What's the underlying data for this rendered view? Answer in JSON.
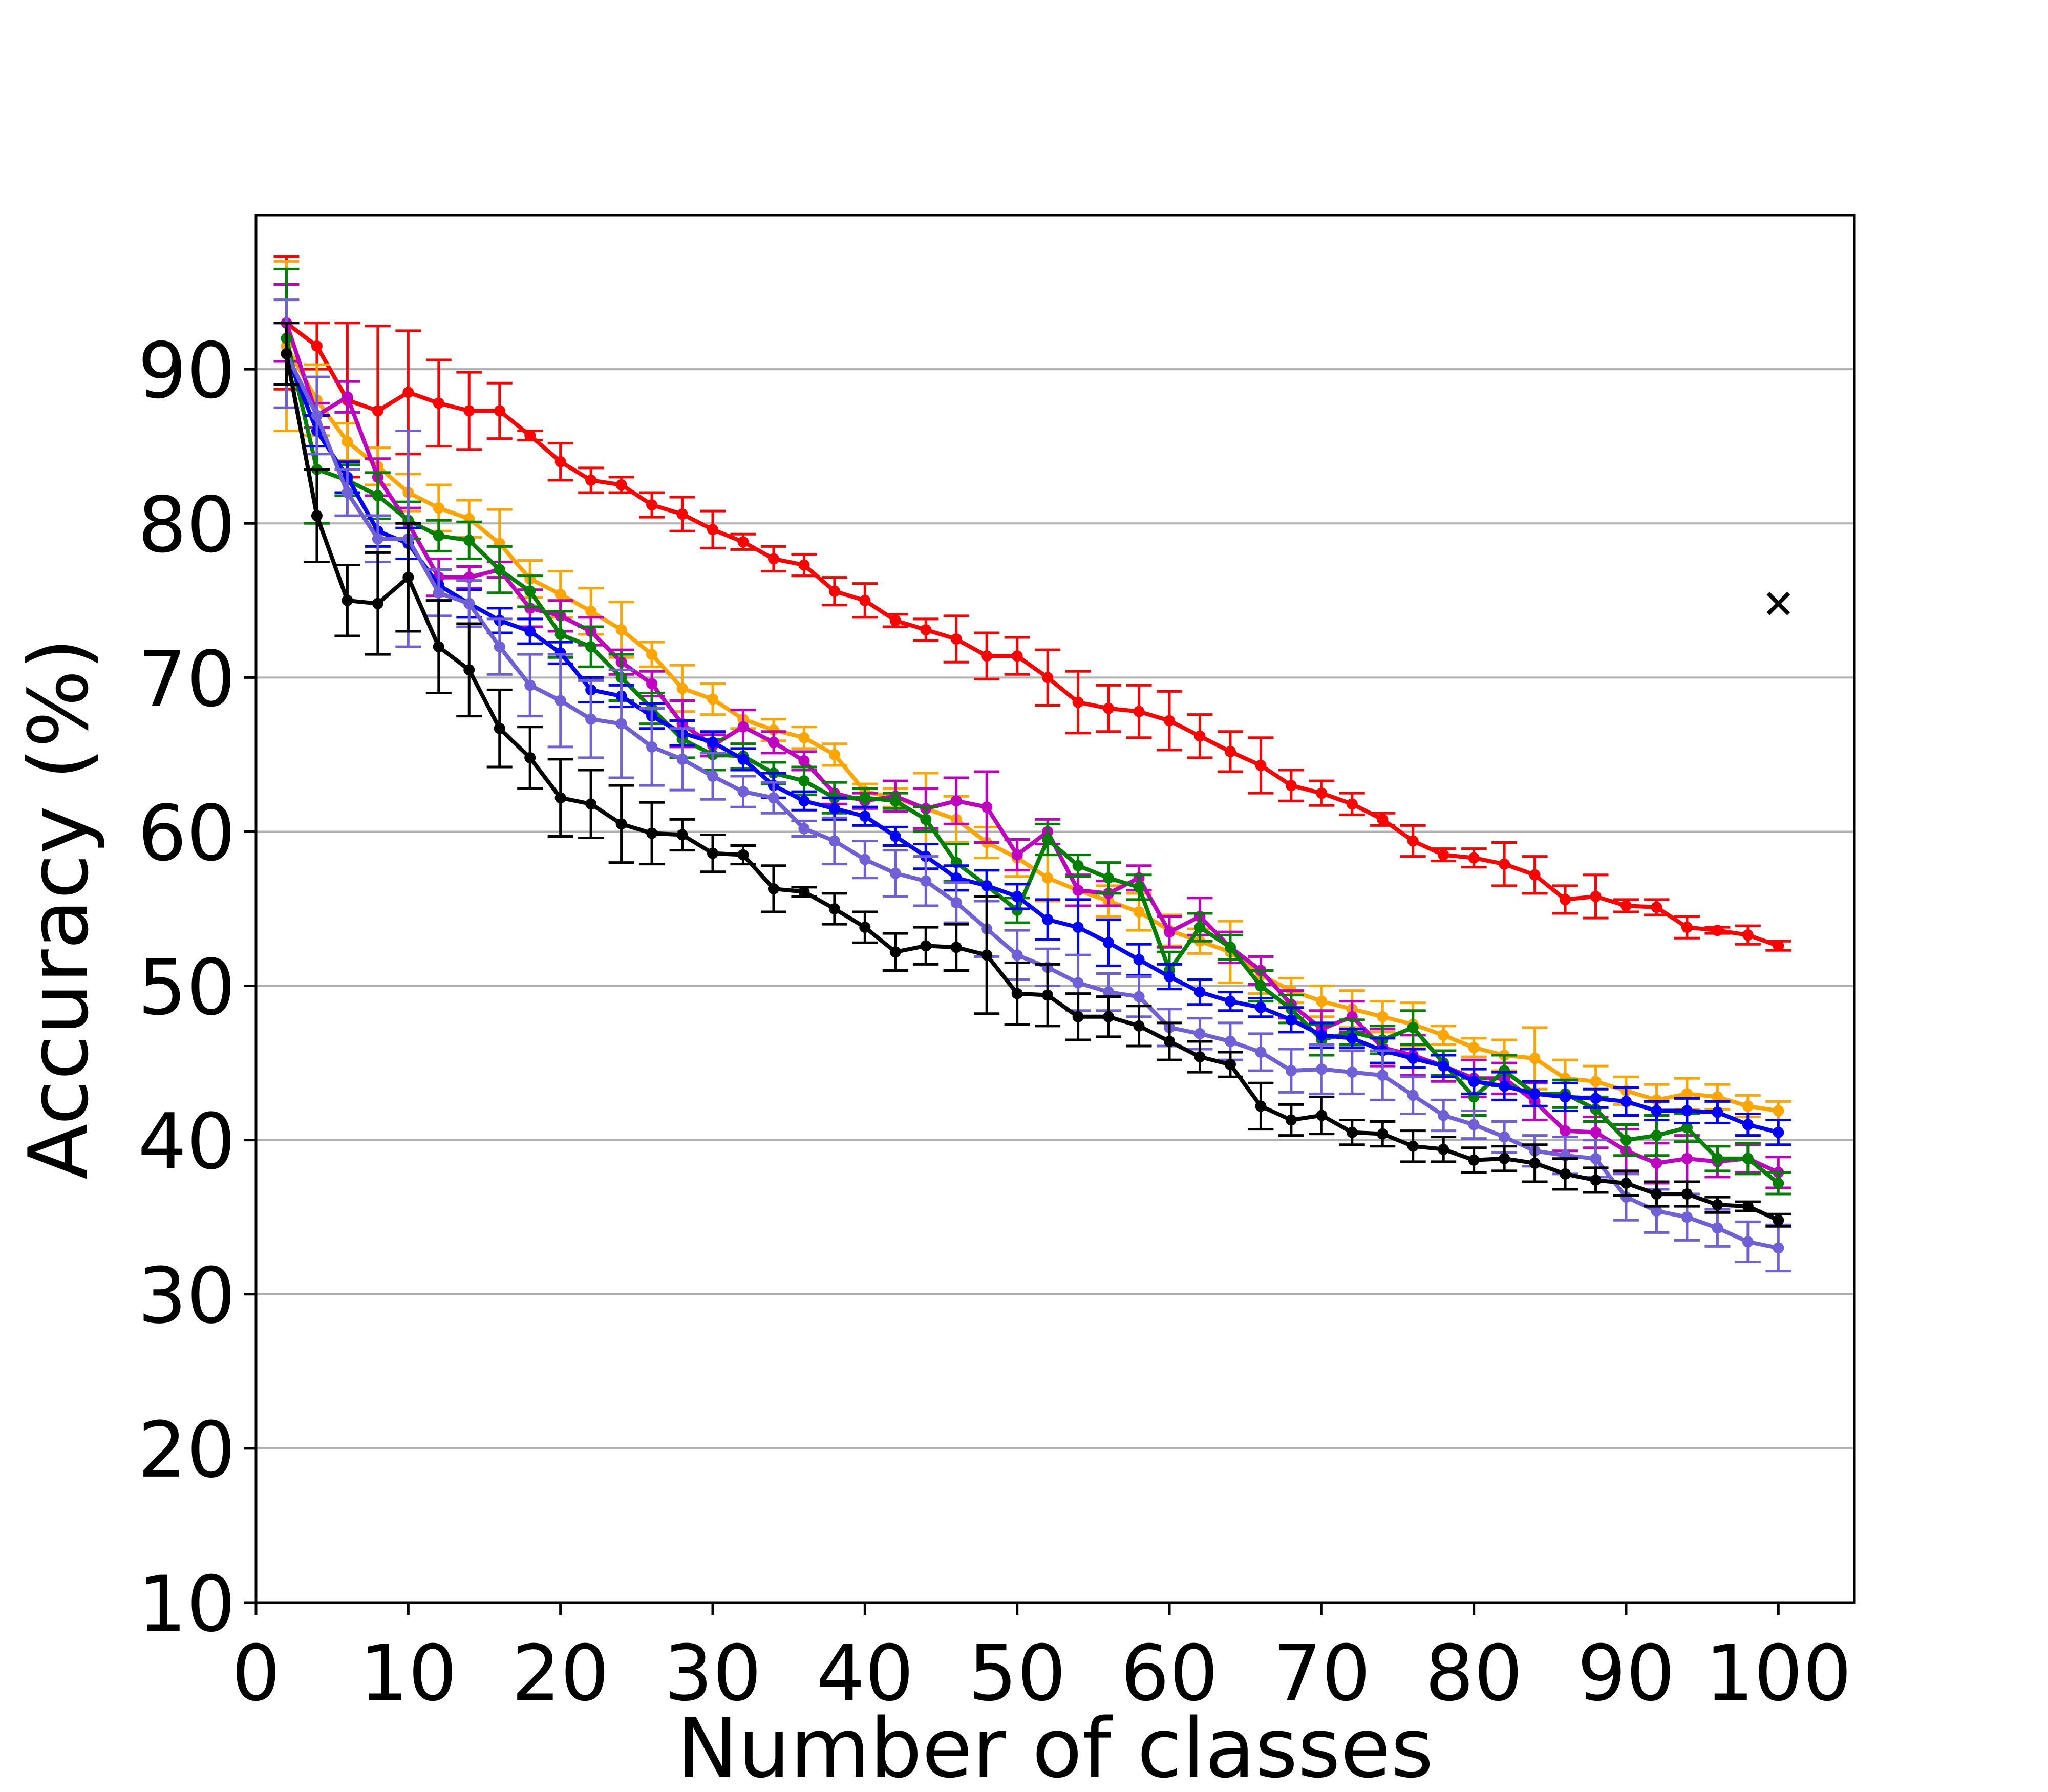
{
  "chart_data": {
    "type": "line",
    "title": "",
    "xlabel": "Number of classes",
    "ylabel": "Accuracy (%)",
    "xlim": [
      0,
      105
    ],
    "ylim": [
      10,
      100
    ],
    "xticks": [
      0,
      10,
      20,
      30,
      40,
      50,
      60,
      70,
      80,
      90,
      100
    ],
    "yticks": [
      10,
      20,
      30,
      40,
      50,
      60,
      70,
      80,
      90
    ],
    "grid": "horizontal",
    "legend": "none",
    "x": [
      2,
      4,
      6,
      8,
      10,
      12,
      14,
      16,
      18,
      20,
      22,
      24,
      26,
      28,
      30,
      32,
      34,
      36,
      38,
      40,
      42,
      44,
      46,
      48,
      50,
      52,
      54,
      56,
      58,
      60,
      62,
      64,
      66,
      68,
      70,
      72,
      74,
      76,
      78,
      80,
      82,
      84,
      86,
      88,
      90,
      92,
      94,
      96,
      98,
      100
    ],
    "series": [
      {
        "color": "#ff0000",
        "values": [
          93.0,
          91.5,
          88.0,
          87.3,
          88.5,
          87.8,
          87.3,
          87.3,
          85.7,
          84.0,
          82.8,
          82.5,
          81.2,
          80.6,
          79.6,
          78.8,
          77.7,
          77.3,
          75.6,
          75.0,
          73.7,
          73.1,
          72.5,
          71.4,
          71.4,
          70.0,
          68.4,
          68.0,
          67.8,
          67.2,
          66.2,
          65.2,
          64.3,
          63.0,
          62.5,
          61.8,
          60.8,
          59.4,
          58.5,
          58.3,
          57.9,
          57.2,
          55.6,
          55.8,
          55.2,
          55.1,
          53.8,
          53.6,
          53.3,
          52.6
        ],
        "errors": [
          4.3,
          1.5,
          5.0,
          5.5,
          4.0,
          2.8,
          2.5,
          1.8,
          0.3,
          1.2,
          0.8,
          0.5,
          0.8,
          1.1,
          1.2,
          0.5,
          0.8,
          0.7,
          0.9,
          1.1,
          0.4,
          0.7,
          1.5,
          1.5,
          1.2,
          1.8,
          2.0,
          1.5,
          1.7,
          1.9,
          1.4,
          1.3,
          1.8,
          1.0,
          0.8,
          0.7,
          0.4,
          1.0,
          0.4,
          0.6,
          1.4,
          1.2,
          0.9,
          1.4,
          0.4,
          0.5,
          0.7,
          0.2,
          0.6,
          0.3
        ]
      },
      {
        "color": "#ffa500",
        "values": [
          91.5,
          88.0,
          85.3,
          83.7,
          82.0,
          81.0,
          80.3,
          78.7,
          76.4,
          75.4,
          74.3,
          73.1,
          71.5,
          69.3,
          68.6,
          67.3,
          66.6,
          66.1,
          65.0,
          62.6,
          62.2,
          61.5,
          60.8,
          59.3,
          58.3,
          57.0,
          56.2,
          55.5,
          54.8,
          53.6,
          52.9,
          52.2,
          50.7,
          49.7,
          49.0,
          48.5,
          48.0,
          47.5,
          46.8,
          46.0,
          45.5,
          45.3,
          44.0,
          43.8,
          43.2,
          42.6,
          43.0,
          42.8,
          42.2,
          41.9
        ],
        "errors": [
          5.5,
          2.3,
          1.2,
          1.2,
          1.2,
          1.5,
          1.2,
          2.2,
          1.2,
          1.5,
          1.5,
          1.8,
          0.8,
          1.5,
          1.0,
          0.6,
          0.7,
          0.7,
          0.7,
          0.5,
          0.6,
          2.3,
          1.5,
          1.0,
          1.2,
          1.5,
          1.0,
          1.0,
          1.2,
          1.0,
          0.8,
          2.0,
          1.2,
          0.8,
          1.0,
          1.2,
          1.0,
          1.4,
          0.6,
          0.6,
          1.0,
          2.0,
          1.2,
          1.0,
          0.9,
          1.0,
          1.0,
          0.8,
          0.7,
          0.6
        ]
      },
      {
        "color": "#c000c0",
        "values": [
          93.0,
          87.0,
          88.2,
          83.0,
          80.0,
          76.5,
          76.5,
          77.0,
          74.5,
          74.0,
          73.0,
          71.0,
          69.6,
          67.0,
          65.6,
          66.8,
          65.8,
          64.6,
          62.5,
          62.0,
          62.3,
          61.5,
          62.0,
          61.6,
          58.5,
          60.0,
          56.2,
          56.0,
          57.0,
          53.5,
          54.5,
          52.5,
          51.0,
          48.8,
          47.2,
          48.0,
          46.0,
          45.5,
          44.8,
          44.0,
          44.0,
          42.5,
          40.6,
          40.5,
          39.3,
          38.5,
          38.8,
          38.6,
          38.8,
          37.9
        ],
        "errors": [
          2.5,
          0.8,
          1.0,
          1.2,
          1.0,
          1.2,
          0.7,
          0.5,
          1.2,
          1.0,
          0.9,
          0.8,
          0.8,
          1.5,
          0.7,
          1.1,
          0.7,
          0.6,
          0.7,
          0.5,
          1.0,
          1.3,
          1.5,
          2.3,
          1.0,
          0.8,
          1.0,
          0.8,
          0.8,
          1.0,
          1.2,
          1.0,
          0.9,
          0.9,
          1.2,
          1.0,
          1.2,
          1.3,
          1.0,
          1.2,
          1.0,
          1.2,
          1.3,
          1.0,
          1.4,
          1.3,
          1.5,
          1.0,
          0.9,
          1.0
        ]
      },
      {
        "color": "#008000",
        "values": [
          92.0,
          83.5,
          82.8,
          81.8,
          80.2,
          79.2,
          78.9,
          77.0,
          75.6,
          72.8,
          72.0,
          70.0,
          68.0,
          66.0,
          65.0,
          64.9,
          63.8,
          63.3,
          62.2,
          62.2,
          62.0,
          60.8,
          58.0,
          56.5,
          54.9,
          59.5,
          57.8,
          57.0,
          56.4,
          51.0,
          53.8,
          52.5,
          50.0,
          48.5,
          46.5,
          47.0,
          46.5,
          47.3,
          45.0,
          42.8,
          44.5,
          43.0,
          43.0,
          42.0,
          40.0,
          40.3,
          40.8,
          38.8,
          38.8,
          37.2
        ],
        "errors": [
          4.5,
          3.5,
          1.0,
          1.5,
          1.2,
          1.0,
          1.2,
          1.5,
          1.0,
          1.5,
          1.3,
          1.5,
          1.0,
          1.2,
          1.0,
          0.8,
          0.7,
          0.9,
          1.0,
          0.6,
          0.5,
          0.8,
          1.2,
          1.0,
          0.8,
          1.0,
          0.7,
          1.0,
          0.8,
          1.2,
          0.9,
          0.8,
          1.0,
          0.9,
          1.0,
          0.8,
          0.9,
          1.1,
          0.8,
          1.2,
          1.0,
          0.8,
          0.9,
          0.8,
          1.0,
          1.3,
          0.9,
          0.8,
          1.0,
          0.7
        ]
      },
      {
        "color": "#0000ff",
        "values": [
          91.0,
          86.0,
          83.0,
          79.5,
          78.7,
          76.0,
          74.8,
          73.7,
          73.0,
          71.6,
          69.2,
          68.8,
          67.5,
          66.4,
          65.8,
          64.7,
          63.0,
          62.0,
          61.5,
          61.0,
          59.7,
          58.4,
          57.0,
          56.5,
          55.8,
          54.3,
          53.8,
          52.8,
          51.7,
          50.6,
          49.6,
          49.0,
          48.6,
          47.8,
          46.8,
          46.6,
          45.8,
          45.3,
          44.8,
          43.8,
          43.5,
          43.0,
          42.8,
          42.7,
          42.5,
          41.9,
          41.9,
          41.8,
          41.0,
          40.5
        ],
        "errors": [
          2.0,
          1.0,
          1.0,
          1.0,
          1.0,
          1.0,
          0.9,
          0.8,
          0.8,
          0.7,
          0.8,
          0.7,
          0.8,
          0.8,
          0.7,
          0.7,
          0.8,
          0.6,
          0.7,
          0.6,
          0.6,
          0.8,
          0.8,
          1.0,
          0.8,
          1.3,
          1.8,
          1.5,
          1.0,
          0.8,
          0.8,
          0.6,
          0.6,
          0.8,
          0.8,
          0.6,
          0.8,
          0.6,
          0.7,
          0.8,
          0.9,
          0.8,
          0.9,
          0.6,
          0.9,
          0.6,
          0.8,
          0.7,
          0.7,
          0.8
        ]
      },
      {
        "color": "#7060d8",
        "values": [
          91.0,
          87.0,
          82.0,
          79.0,
          79.0,
          75.5,
          74.8,
          72.0,
          69.5,
          68.5,
          67.3,
          67.0,
          65.5,
          64.7,
          63.6,
          62.6,
          62.2,
          60.2,
          59.4,
          58.2,
          57.3,
          56.8,
          55.4,
          53.7,
          52.0,
          51.2,
          50.2,
          49.6,
          49.3,
          47.3,
          46.9,
          46.4,
          45.7,
          44.5,
          44.6,
          44.4,
          44.2,
          42.9,
          41.6,
          41.0,
          40.2,
          39.3,
          39.0,
          38.8,
          36.3,
          35.4,
          35.0,
          34.3,
          33.4,
          33.0
        ],
        "errors": [
          3.5,
          2.5,
          1.5,
          1.5,
          7.0,
          1.5,
          1.5,
          1.8,
          2.0,
          3.0,
          2.5,
          3.5,
          2.5,
          2.0,
          1.5,
          1.0,
          1.0,
          0.5,
          1.5,
          1.2,
          1.5,
          1.6,
          1.3,
          1.8,
          1.6,
          1.2,
          1.8,
          1.2,
          1.3,
          1.2,
          1.0,
          1.2,
          1.2,
          1.4,
          1.6,
          1.4,
          1.6,
          1.2,
          1.0,
          0.9,
          1.0,
          1.0,
          1.2,
          1.2,
          1.5,
          1.4,
          1.5,
          1.2,
          1.3,
          1.5
        ]
      },
      {
        "color": "#000000",
        "values": [
          91.0,
          80.5,
          75.0,
          74.8,
          76.5,
          72.0,
          70.5,
          66.7,
          64.8,
          62.2,
          61.8,
          60.5,
          59.9,
          59.8,
          58.6,
          58.5,
          56.3,
          56.1,
          55.0,
          53.8,
          52.2,
          52.6,
          52.5,
          52.0,
          49.5,
          49.4,
          48.0,
          48.0,
          47.4,
          46.4,
          45.4,
          44.9,
          42.2,
          41.3,
          41.6,
          40.5,
          40.4,
          39.6,
          39.4,
          38.7,
          38.8,
          38.5,
          37.8,
          37.4,
          37.2,
          36.5,
          36.5,
          35.8,
          35.7,
          34.8
        ],
        "errors": [
          2.0,
          3.0,
          2.3,
          3.3,
          3.5,
          3.0,
          3.0,
          2.5,
          2.0,
          2.5,
          2.2,
          2.5,
          2.0,
          1.0,
          1.2,
          0.6,
          1.5,
          0.3,
          1.0,
          1.0,
          1.2,
          1.2,
          1.5,
          3.8,
          2.0,
          2.0,
          1.5,
          1.3,
          1.3,
          1.2,
          1.0,
          0.8,
          1.5,
          1.0,
          1.2,
          0.8,
          0.8,
          1.0,
          0.8,
          0.8,
          0.8,
          1.2,
          1.0,
          0.8,
          0.8,
          0.8,
          0.8,
          0.5,
          0.3,
          0.4
        ]
      }
    ],
    "markers": [
      {
        "x": 100,
        "y": 74.8,
        "symbol": "×",
        "color": "#000000"
      }
    ]
  }
}
